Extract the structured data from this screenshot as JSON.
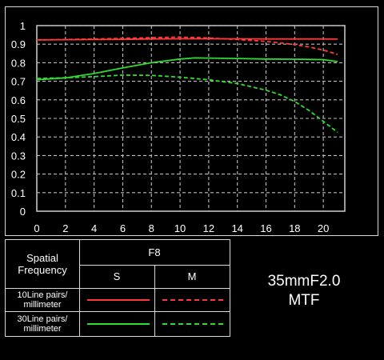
{
  "chart_data": {
    "type": "line",
    "title": "",
    "xlabel": "",
    "ylabel": "",
    "xlim": [
      0,
      21.5
    ],
    "ylim": [
      0,
      1
    ],
    "grid": true,
    "x_ticks": [
      0,
      2,
      4,
      6,
      8,
      10,
      12,
      14,
      16,
      18,
      20
    ],
    "y_ticks": [
      0,
      0.1,
      0.2,
      0.3,
      0.4,
      0.5,
      0.6,
      0.7,
      0.8,
      0.9,
      1
    ],
    "x_tick_labels": [
      "0",
      "2",
      "4",
      "6",
      "8",
      "10",
      "12",
      "14",
      "16",
      "18",
      "20"
    ],
    "y_tick_labels": [
      "0",
      "0.1",
      "0.2",
      "0.3",
      "0.4",
      "0.5",
      "0.6",
      "0.7",
      "0.8",
      "0.9",
      "1"
    ],
    "series": [
      {
        "color": "#ff3a3a",
        "style": "solid",
        "x": [
          0,
          2,
          4,
          6,
          8,
          10,
          12,
          14,
          16,
          18,
          20,
          21
        ],
        "y": [
          0.923,
          0.924,
          0.925,
          0.926,
          0.928,
          0.929,
          0.929,
          0.929,
          0.928,
          0.928,
          0.928,
          0.927
        ]
      },
      {
        "color": "#ff3a3a",
        "style": "dashed",
        "x": [
          0,
          2,
          4,
          6,
          8,
          10,
          12,
          14,
          16,
          18,
          19,
          20,
          21
        ],
        "y": [
          0.923,
          0.925,
          0.928,
          0.931,
          0.935,
          0.938,
          0.933,
          0.925,
          0.915,
          0.898,
          0.885,
          0.868,
          0.845
        ]
      },
      {
        "color": "#2fdc2f",
        "style": "solid",
        "x": [
          0,
          2,
          4,
          6,
          8,
          10,
          11,
          12,
          14,
          16,
          18,
          20,
          21
        ],
        "y": [
          0.708,
          0.718,
          0.742,
          0.772,
          0.8,
          0.82,
          0.826,
          0.825,
          0.823,
          0.82,
          0.819,
          0.817,
          0.806
        ]
      },
      {
        "color": "#2fdc2f",
        "style": "dashed",
        "x": [
          0,
          2,
          4,
          6,
          8,
          10,
          12,
          14,
          16,
          17,
          18,
          19,
          20,
          21
        ],
        "y": [
          0.715,
          0.719,
          0.725,
          0.733,
          0.732,
          0.722,
          0.708,
          0.688,
          0.652,
          0.627,
          0.591,
          0.543,
          0.484,
          0.425
        ]
      }
    ]
  },
  "legend": {
    "header_row_label": "Spatial\nFrequency",
    "aperture": "F8",
    "col_s": "S",
    "col_m": "M",
    "row1_label": "10Line pairs/\nmillimeter",
    "row2_label": "30Line pairs/\nmillimeter",
    "red": "#ff3a3a",
    "green": "#2fdc2f"
  },
  "caption": {
    "line1": "35mmF2.0",
    "line2": "MTF"
  }
}
